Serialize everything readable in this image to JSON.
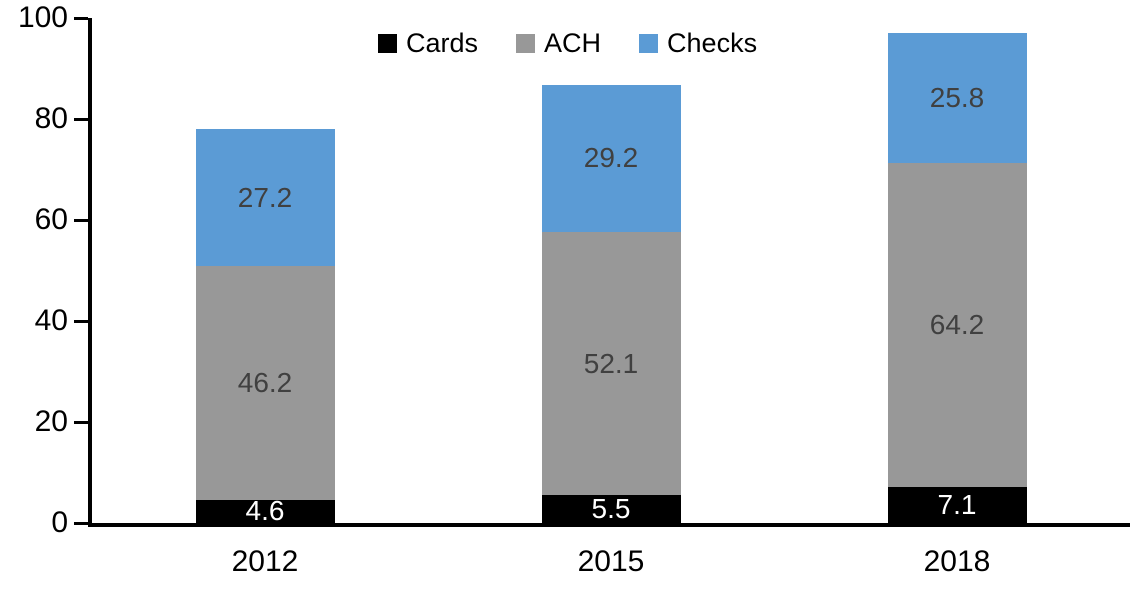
{
  "chart_data": {
    "type": "bar",
    "stacked": true,
    "title": "",
    "xlabel": "",
    "ylabel": "",
    "categories": [
      "2012",
      "2015",
      "2018"
    ],
    "series": [
      {
        "name": "Cards",
        "color": "#000000",
        "label_color": "#ffffff",
        "values": [
          4.6,
          5.5,
          7.1
        ]
      },
      {
        "name": "ACH",
        "color": "#989898",
        "label_color": "#404040",
        "values": [
          46.2,
          52.1,
          64.2
        ]
      },
      {
        "name": "Checks",
        "color": "#5b9bd5",
        "label_color": "#404040",
        "values": [
          27.2,
          29.2,
          25.8
        ]
      }
    ],
    "totals": [
      78.0,
      86.8,
      97.1
    ],
    "ylim": [
      0,
      100
    ],
    "yticks": [
      0,
      20,
      40,
      60,
      80,
      100
    ],
    "grid": false,
    "legend_position": "top",
    "axis_color": "#000000",
    "background": "#ffffff",
    "data_labels_shown": true
  }
}
